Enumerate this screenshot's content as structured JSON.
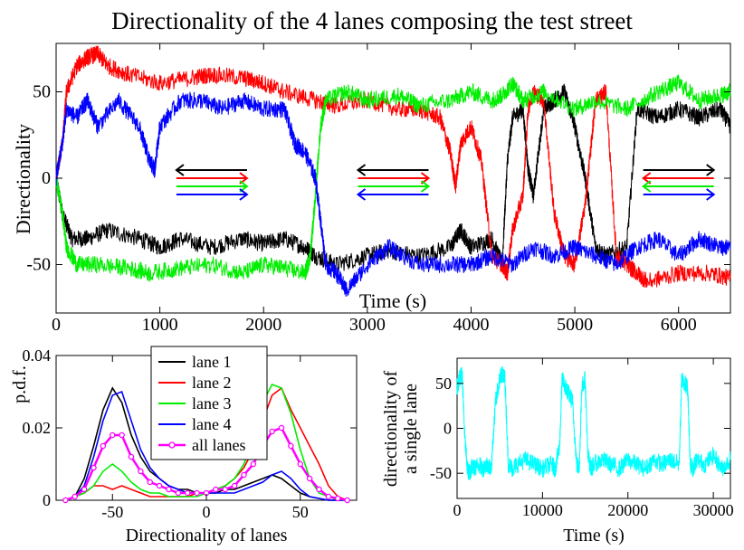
{
  "figure_title": "Directionality of the 4 lanes composing the test street",
  "colors": {
    "lane1": "#000000",
    "lane2": "#ff0000",
    "lane3": "#00ee00",
    "lane4": "#0000ff",
    "all_lanes": "#ff00ff",
    "single_lane": "#00ffff"
  },
  "chart_data": [
    {
      "id": "top",
      "type": "line",
      "title": "Directionality of the 4 lanes composing the test street",
      "xlabel": "Time (s)",
      "ylabel": "Directionality",
      "xlim": [
        0,
        6500
      ],
      "ylim": [
        -78,
        78
      ],
      "xticks": [
        0,
        1000,
        2000,
        3000,
        4000,
        5000,
        6000
      ],
      "yticks": [
        -50,
        0,
        50
      ],
      "series": [
        {
          "key": "lane1",
          "x": [
            0,
            60,
            150,
            300,
            500,
            800,
            1000,
            1200,
            1500,
            1800,
            2000,
            2200,
            2400,
            2500,
            2700,
            3000,
            3200,
            3500,
            3800,
            3900,
            4000,
            4200,
            4300,
            4350,
            4400,
            4500,
            4550,
            4600,
            4700,
            4800,
            4900,
            5000,
            5100,
            5200,
            5300,
            5500,
            5600,
            5800,
            6000,
            6200,
            6400,
            6500
          ],
          "y": [
            0,
            -20,
            -35,
            -35,
            -30,
            -35,
            -40,
            -35,
            -40,
            -35,
            -38,
            -35,
            -40,
            -45,
            -50,
            -45,
            -42,
            -45,
            -40,
            -30,
            -40,
            -35,
            -50,
            10,
            35,
            40,
            5,
            -10,
            40,
            45,
            50,
            30,
            0,
            -40,
            -45,
            -40,
            40,
            35,
            40,
            35,
            40,
            30
          ]
        },
        {
          "key": "lane2",
          "x": [
            0,
            60,
            100,
            200,
            300,
            400,
            500,
            700,
            1000,
            1300,
            1500,
            1800,
            2000,
            2200,
            2500,
            2700,
            3000,
            3300,
            3500,
            3700,
            3800,
            3850,
            3900,
            4000,
            4100,
            4200,
            4300,
            4350,
            4400,
            4500,
            4550,
            4600,
            4700,
            4800,
            4900,
            5000,
            5100,
            5200,
            5300,
            5400,
            5500,
            5600,
            5700,
            6000,
            6300,
            6500
          ],
          "y": [
            0,
            20,
            50,
            65,
            70,
            72,
            65,
            60,
            55,
            58,
            60,
            58,
            55,
            50,
            45,
            42,
            45,
            40,
            40,
            35,
            15,
            -5,
            20,
            30,
            10,
            -45,
            -50,
            -55,
            -30,
            -10,
            40,
            50,
            45,
            -20,
            -45,
            -50,
            -15,
            45,
            50,
            -45,
            -50,
            -55,
            -60,
            -55,
            -55,
            -58
          ]
        },
        {
          "key": "lane3",
          "x": [
            0,
            60,
            100,
            200,
            400,
            700,
            900,
            1200,
            1500,
            1800,
            2000,
            2200,
            2400,
            2450,
            2500,
            2550,
            2600,
            2800,
            3000,
            3300,
            3500,
            3800,
            4000,
            4200,
            4300,
            4400,
            4500,
            4700,
            5000,
            5200,
            5500,
            5800,
            6000,
            6200,
            6400,
            6500
          ],
          "y": [
            0,
            -20,
            -40,
            -50,
            -50,
            -52,
            -55,
            -52,
            -50,
            -55,
            -50,
            -52,
            -55,
            -45,
            -10,
            30,
            45,
            50,
            45,
            48,
            42,
            45,
            50,
            45,
            48,
            55,
            45,
            50,
            40,
            45,
            40,
            50,
            55,
            45,
            48,
            50
          ]
        },
        {
          "key": "lane4",
          "x": [
            0,
            60,
            100,
            200,
            300,
            400,
            600,
            800,
            900,
            950,
            1000,
            1200,
            1400,
            1600,
            1800,
            2000,
            2200,
            2300,
            2400,
            2500,
            2550,
            2600,
            2700,
            2800,
            3000,
            3200,
            3500,
            3800,
            4000,
            4200,
            4400,
            4600,
            4800,
            5000,
            5200,
            5400,
            5600,
            5800,
            6000,
            6200,
            6400,
            6500
          ],
          "y": [
            0,
            20,
            40,
            35,
            45,
            30,
            45,
            30,
            10,
            5,
            30,
            45,
            45,
            40,
            45,
            40,
            40,
            20,
            15,
            0,
            -25,
            -50,
            -55,
            -65,
            -50,
            -40,
            -50,
            -50,
            -50,
            -45,
            -50,
            -40,
            -45,
            -40,
            -45,
            -50,
            -40,
            -35,
            -45,
            -35,
            -40,
            -40
          ]
        }
      ],
      "arrow_annotations": [
        {
          "x_center": 1500,
          "directions": [
            "left",
            "right",
            "right",
            "right"
          ]
        },
        {
          "x_center": 3250,
          "directions": [
            "left",
            "right",
            "right",
            "left"
          ]
        },
        {
          "x_center": 6000,
          "directions": [
            "right",
            "left",
            "left",
            "right"
          ]
        }
      ]
    },
    {
      "id": "pdf",
      "type": "line",
      "xlabel": "Directionality of lanes",
      "ylabel": "p.d.f.",
      "xlim": [
        -80,
        80
      ],
      "ylim": [
        0,
        0.04
      ],
      "xticks": [
        -50,
        0,
        50
      ],
      "xtick_labels": [
        "-50",
        "0",
        "50"
      ],
      "yticks": [
        0,
        0.02,
        0.04
      ],
      "ytick_labels": [
        "0",
        "0.02",
        "0.04"
      ],
      "legend": [
        "lane 1",
        "lane 2",
        "lane 3",
        "lane 4",
        "all lanes"
      ],
      "legend_position": "top-center",
      "x": [
        -75,
        -70,
        -65,
        -60,
        -55,
        -50,
        -45,
        -40,
        -35,
        -30,
        -25,
        -20,
        -15,
        -10,
        -5,
        0,
        5,
        10,
        15,
        20,
        25,
        30,
        35,
        40,
        45,
        50,
        55,
        60,
        65,
        70,
        75
      ],
      "series": [
        {
          "key": "lane1",
          "name": "lane 1",
          "values": [
            0,
            0.001,
            0.006,
            0.015,
            0.025,
            0.031,
            0.027,
            0.018,
            0.012,
            0.008,
            0.006,
            0.004,
            0.003,
            0.003,
            0.002,
            0.002,
            0.002,
            0.003,
            0.003,
            0.004,
            0.005,
            0.006,
            0.007,
            0.006,
            0.004,
            0.002,
            0.001,
            0.0005,
            0,
            0,
            0
          ]
        },
        {
          "key": "lane2",
          "name": "lane 2",
          "values": [
            0,
            0.001,
            0.002,
            0.004,
            0.004,
            0.003,
            0.004,
            0.003,
            0.002,
            0.001,
            0.001,
            0.001,
            0.001,
            0.001,
            0.002,
            0.002,
            0.003,
            0.004,
            0.006,
            0.009,
            0.014,
            0.022,
            0.029,
            0.031,
            0.025,
            0.02,
            0.015,
            0.01,
            0.004,
            0.001,
            0
          ]
        },
        {
          "key": "lane3",
          "name": "lane 3",
          "values": [
            0,
            0.001,
            0.002,
            0.004,
            0.008,
            0.01,
            0.008,
            0.005,
            0.003,
            0.002,
            0.002,
            0.001,
            0.001,
            0.001,
            0.001,
            0.002,
            0.003,
            0.004,
            0.006,
            0.01,
            0.017,
            0.027,
            0.032,
            0.031,
            0.024,
            0.014,
            0.006,
            0.002,
            0.001,
            0,
            0
          ]
        },
        {
          "key": "lane4",
          "name": "lane 4",
          "values": [
            0,
            0.001,
            0.004,
            0.012,
            0.022,
            0.029,
            0.03,
            0.022,
            0.014,
            0.009,
            0.006,
            0.004,
            0.003,
            0.002,
            0.002,
            0.002,
            0.002,
            0.002,
            0.002,
            0.003,
            0.004,
            0.005,
            0.007,
            0.008,
            0.006,
            0.003,
            0.001,
            0.0005,
            0,
            0,
            0
          ]
        },
        {
          "key": "all_lanes",
          "name": "all lanes",
          "values": [
            0,
            0.001,
            0.003,
            0.009,
            0.015,
            0.018,
            0.018,
            0.012,
            0.008,
            0.005,
            0.004,
            0.003,
            0.002,
            0.002,
            0.002,
            0.002,
            0.003,
            0.003,
            0.004,
            0.007,
            0.01,
            0.015,
            0.019,
            0.02,
            0.015,
            0.01,
            0.006,
            0.003,
            0.001,
            0.0005,
            0
          ]
        }
      ]
    },
    {
      "id": "single",
      "type": "line",
      "xlabel": "Time (s)",
      "ylabel_lines": [
        "directionality of",
        "a single lane"
      ],
      "xlim": [
        0,
        32000
      ],
      "ylim": [
        -78,
        78
      ],
      "xticks": [
        0,
        10000,
        20000,
        30000
      ],
      "yticks": [
        -50,
        0,
        50
      ],
      "series": [
        {
          "key": "single_lane",
          "x": [
            0,
            300,
            600,
            900,
            1200,
            1500,
            1800,
            2000,
            2500,
            3000,
            3500,
            4000,
            4500,
            5000,
            5300,
            5600,
            6000,
            6500,
            7000,
            8000,
            9000,
            10000,
            11000,
            11500,
            12000,
            12300,
            12700,
            13000,
            13500,
            14000,
            14300,
            14600,
            15000,
            15300,
            15700,
            16000,
            17000,
            18000,
            19000,
            20000,
            21000,
            22000,
            23000,
            24000,
            25000,
            26000,
            26300,
            26700,
            27000,
            27300,
            27600,
            28000,
            29000,
            30000,
            31000,
            32000
          ],
          "y": [
            45,
            55,
            60,
            -10,
            -45,
            -50,
            -40,
            -45,
            -40,
            -45,
            -40,
            -45,
            30,
            55,
            60,
            55,
            -40,
            -45,
            -40,
            -35,
            -40,
            -45,
            -40,
            -45,
            -20,
            55,
            45,
            40,
            30,
            -40,
            -45,
            45,
            55,
            -30,
            -45,
            -40,
            -35,
            -40,
            -45,
            -35,
            -40,
            -45,
            -35,
            -40,
            -35,
            -40,
            55,
            50,
            45,
            -40,
            -45,
            -35,
            -40,
            -30,
            -45,
            -35
          ]
        }
      ]
    }
  ]
}
